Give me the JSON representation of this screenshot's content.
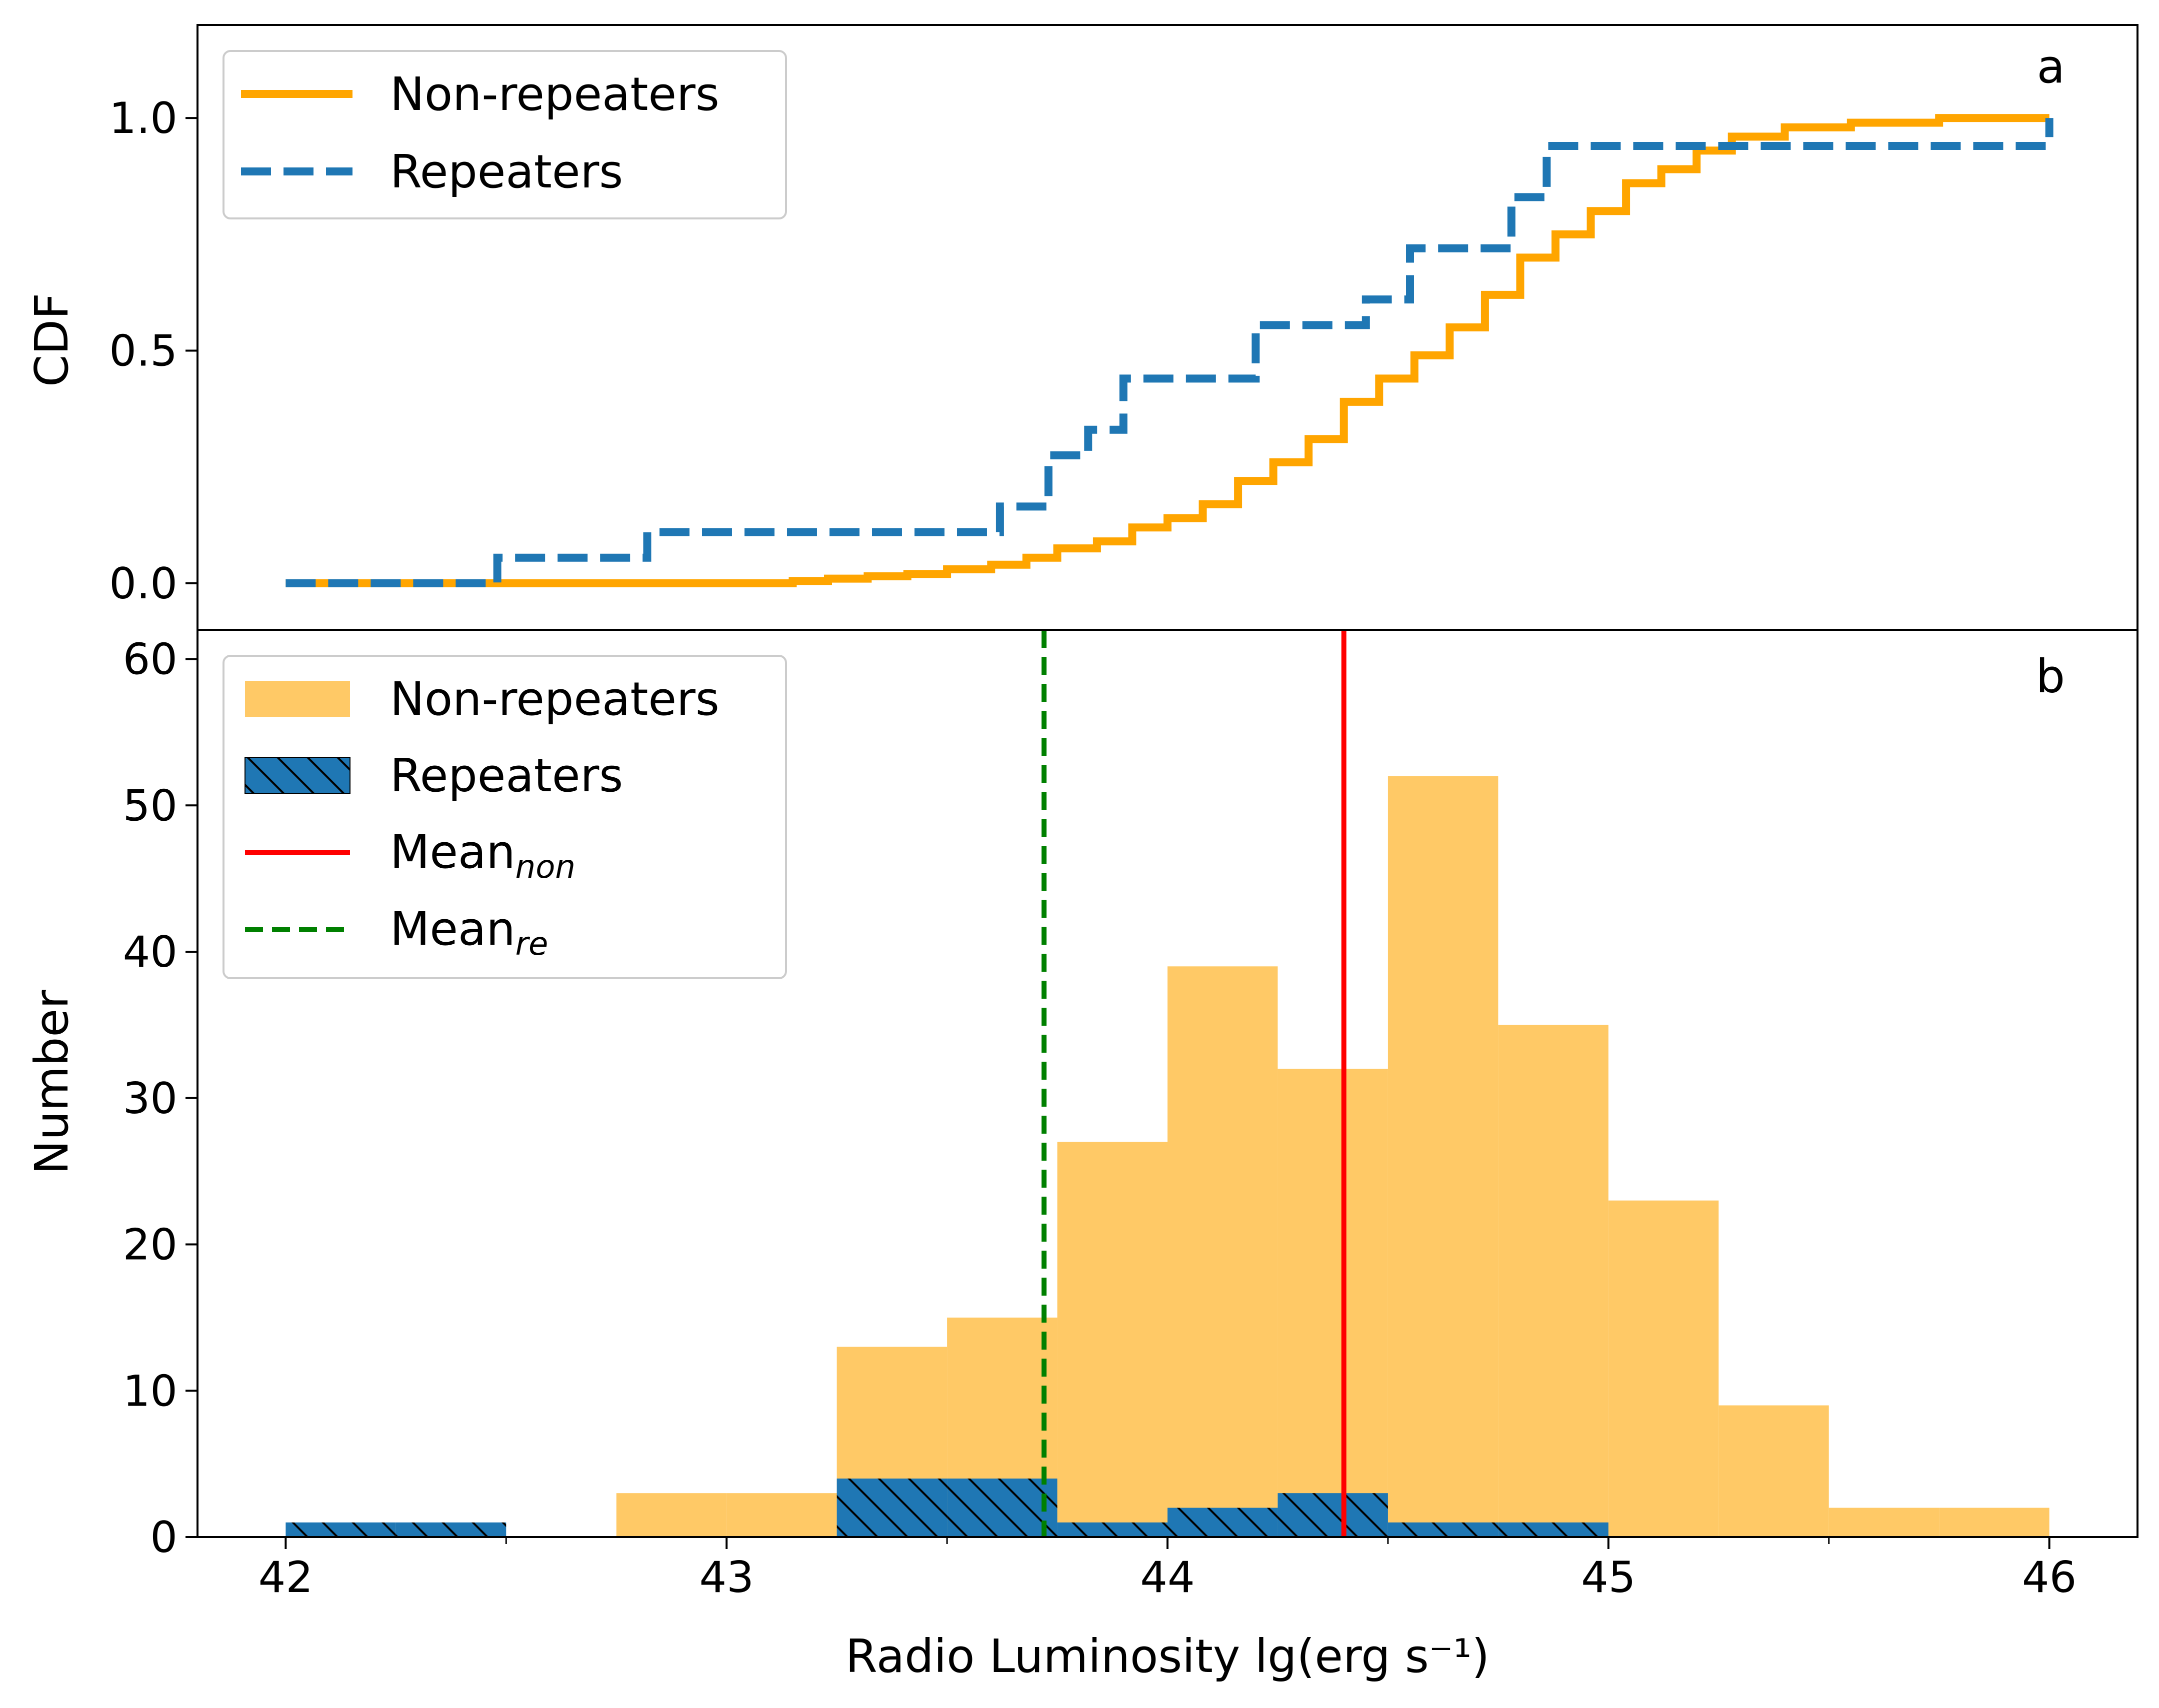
{
  "colors": {
    "non_repeaters": "#FFA500",
    "non_repeaters_hist": "#FFC966",
    "repeaters": "#1F77B4",
    "mean_non": "#FF0000",
    "mean_re": "#008000"
  },
  "chart_data": [
    {
      "type": "line",
      "panel_label": "a",
      "xlabel": "",
      "ylabel": "CDF",
      "xlim": [
        41.8,
        46.2
      ],
      "ylim": [
        -0.1,
        1.2
      ],
      "yticks": [
        0.0,
        0.5,
        1.0
      ],
      "ytick_labels": [
        "0.0",
        "0.5",
        "1.0"
      ],
      "legend": {
        "position": "upper-left",
        "entries": [
          "Non-repeaters",
          "Repeaters"
        ]
      },
      "series": [
        {
          "name": "Non-repeaters",
          "style": "solid-step",
          "x": [
            42.0,
            43.15,
            43.23,
            43.32,
            43.41,
            43.5,
            43.6,
            43.68,
            43.75,
            43.84,
            43.92,
            44.0,
            44.08,
            44.16,
            44.24,
            44.32,
            44.4,
            44.48,
            44.56,
            44.64,
            44.72,
            44.8,
            44.88,
            44.96,
            45.04,
            45.12,
            45.2,
            45.28,
            45.4,
            45.55,
            45.75,
            46.0
          ],
          "y": [
            0.0,
            0.005,
            0.01,
            0.015,
            0.02,
            0.03,
            0.04,
            0.055,
            0.075,
            0.09,
            0.12,
            0.14,
            0.17,
            0.22,
            0.26,
            0.31,
            0.39,
            0.44,
            0.49,
            0.55,
            0.62,
            0.7,
            0.75,
            0.8,
            0.86,
            0.89,
            0.93,
            0.96,
            0.98,
            0.99,
            1.0,
            1.0
          ]
        },
        {
          "name": "Repeaters",
          "style": "dashed-step",
          "x": [
            42.0,
            42.48,
            42.82,
            43.62,
            43.73,
            43.82,
            43.9,
            44.2,
            44.45,
            44.55,
            44.78,
            44.86,
            46.0
          ],
          "y": [
            0.0,
            0.055,
            0.11,
            0.165,
            0.275,
            0.33,
            0.44,
            0.555,
            0.61,
            0.72,
            0.83,
            0.94,
            1.0
          ]
        }
      ]
    },
    {
      "type": "bar",
      "panel_label": "b",
      "xlabel": "Radio Luminosity lg(erg s⁻¹)",
      "ylabel": "Number",
      "xlim": [
        41.8,
        46.2
      ],
      "ylim": [
        0,
        62
      ],
      "xticks": [
        42,
        43,
        44,
        45,
        46
      ],
      "xtick_labels": [
        "42",
        "43",
        "44",
        "45",
        "46"
      ],
      "yticks": [
        0,
        10,
        20,
        30,
        40,
        50,
        60
      ],
      "ytick_labels": [
        "0",
        "10",
        "20",
        "30",
        "40",
        "50",
        "60"
      ],
      "bin_edges": [
        42.0,
        42.25,
        42.5,
        42.75,
        43.0,
        43.25,
        43.5,
        43.75,
        44.0,
        44.25,
        44.5,
        44.75,
        45.0,
        45.25,
        45.5,
        45.75,
        46.0
      ],
      "legend": {
        "position": "upper-left",
        "entries": [
          "Non-repeaters",
          "Repeaters",
          "Mean",
          "Mean"
        ],
        "subscripts": [
          "",
          "",
          "non",
          "re"
        ]
      },
      "series": [
        {
          "name": "Non-repeaters",
          "values": [
            0,
            0,
            0,
            3,
            3,
            13,
            15,
            27,
            39,
            32,
            52,
            35,
            23,
            9,
            2,
            2
          ]
        },
        {
          "name": "Repeaters",
          "values": [
            1,
            1,
            0,
            0,
            0,
            4,
            4,
            1,
            2,
            3,
            1,
            1,
            0,
            0,
            0,
            0
          ]
        }
      ],
      "vlines": [
        {
          "name": "Mean_non",
          "x": 44.4,
          "style": "solid"
        },
        {
          "name": "Mean_re",
          "x": 43.72,
          "style": "dashed"
        }
      ]
    }
  ]
}
